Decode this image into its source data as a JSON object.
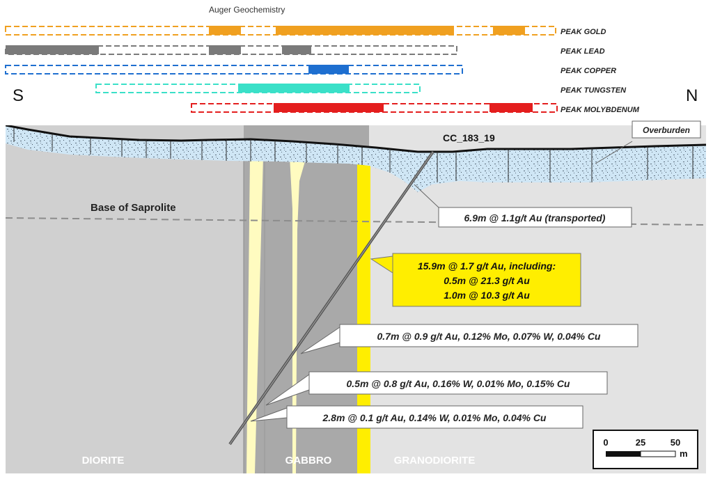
{
  "title": "Auger Geochemistry",
  "orientation": {
    "south": "S",
    "north": "N"
  },
  "geochem_tracks": [
    {
      "label": "PEAK GOLD",
      "color": "#f0a020"
    },
    {
      "label": "PEAK LEAD",
      "color": "#7a7a7a"
    },
    {
      "label": "PEAK COPPER",
      "color": "#1e6fd0"
    },
    {
      "label": "PEAK TUNGSTEN",
      "color": "#3ae0c8"
    },
    {
      "label": "PEAK MOLYBDENUM",
      "color": "#e41e1e"
    }
  ],
  "drillhole": {
    "id": "CC_183_19"
  },
  "labels": {
    "overburden": "Overburden",
    "base_saprolite": "Base of Saprolite"
  },
  "lithology": {
    "diorite": "DIORITE",
    "gabbro": "GABBRO",
    "granodiorite": "GRANODIORITE"
  },
  "intercepts": {
    "transported": "6.9m @ 1.1g/t Au (transported)",
    "main": [
      "15.9m @ 1.7 g/t Au, including:",
      "0.5m @ 21.3 g/t  Au",
      "1.0m @ 10.3 g/t Au"
    ],
    "i1": "0.7m @ 0.9 g/t Au, 0.12% Mo, 0.07% W, 0.04% Cu",
    "i2": "0.5m @ 0.8 g/t Au, 0.16% W, 0.01% Mo, 0.15% Cu",
    "i3": "2.8m @ 0.1 g/t Au, 0.14% W, 0.01% Mo, 0.04% Cu"
  },
  "scale_bar": {
    "ticks": [
      "0",
      "25",
      "50"
    ],
    "unit": "m"
  },
  "colors": {
    "highlight_yellow": "#ffee00",
    "pale_yellow": "#fffbc0",
    "overburden_blue": "#cfe6f5",
    "diorite_grey": "#d0d0d0",
    "gabbro_grey": "#a9a9a9",
    "granodiorite_grey": "#e3e3e3"
  }
}
